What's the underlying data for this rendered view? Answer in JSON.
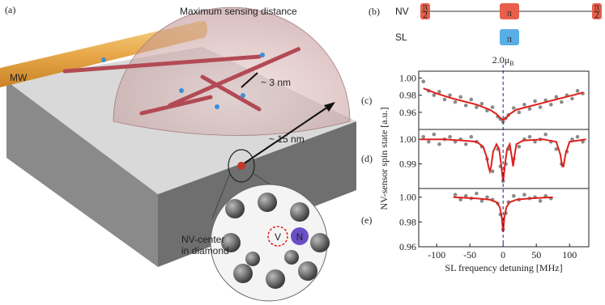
{
  "illustration": {
    "label": "(a)",
    "title": "Maximum sensing distance",
    "mw_label": "MW",
    "short_distance": "~ 3 nm",
    "long_distance": "~ 15 nm",
    "nv_caption": [
      "NV-center",
      "in diamond"
    ],
    "vacancy": "V",
    "nitrogen": "N"
  },
  "pulse_sequence": {
    "label": "(b)",
    "rows": [
      {
        "name": "NV",
        "pulses": [
          {
            "text": "π",
            "sub": "2"
          },
          {
            "text": "π"
          },
          {
            "text": "π",
            "sub": "2"
          }
        ]
      },
      {
        "name": "SL",
        "pulses": [
          {
            "text": "π"
          }
        ]
      }
    ]
  },
  "y_axis_label": "NV-sensor spin state [a.u.]",
  "detuning_marker": {
    "x": 0,
    "text": "2.0μ",
    "sub": "B"
  },
  "chart_data": [
    {
      "type": "scatter",
      "label": "(c)",
      "xlim": [
        -127,
        129
      ],
      "ylim": [
        0.94,
        1.008
      ],
      "yticks": [
        {
          "value": 0.96,
          "label": "0.96"
        },
        {
          "value": 0.98,
          "label": "0.98"
        },
        {
          "value": 1.0,
          "label": "1.00"
        }
      ],
      "points": {
        "color": "#8a8a8a",
        "x": [
          -120,
          -112,
          -104,
          -96,
          -88,
          -80,
          -72,
          -64,
          -56,
          -48,
          -40,
          -32,
          -24,
          -16,
          -8,
          -4,
          0,
          4,
          8,
          16,
          24,
          32,
          40,
          48,
          56,
          64,
          72,
          80,
          88,
          96,
          104,
          112,
          120
        ],
        "values": [
          0.996,
          0.985,
          0.98,
          0.984,
          0.975,
          0.98,
          0.972,
          0.978,
          0.968,
          0.975,
          0.966,
          0.97,
          0.962,
          0.966,
          0.955,
          0.952,
          0.949,
          0.953,
          0.957,
          0.965,
          0.96,
          0.969,
          0.964,
          0.973,
          0.966,
          0.974,
          0.969,
          0.978,
          0.972,
          0.98,
          0.976,
          0.985,
          0.982
        ]
      },
      "fit": {
        "color": "#e0201c",
        "x": [
          -120,
          -100,
          -80,
          -60,
          -40,
          -20,
          -10,
          -5,
          0,
          5,
          10,
          20,
          40,
          60,
          80,
          100,
          120
        ],
        "values": [
          0.988,
          0.982,
          0.977,
          0.973,
          0.969,
          0.963,
          0.958,
          0.954,
          0.951,
          0.954,
          0.958,
          0.963,
          0.967,
          0.971,
          0.975,
          0.979,
          0.983
        ]
      }
    },
    {
      "type": "scatter",
      "label": "(d)",
      "xlim": [
        -127,
        129
      ],
      "ylim": [
        0.98,
        1.004
      ],
      "yticks": [
        {
          "value": 0.99,
          "label": "0.99"
        },
        {
          "value": 1.0,
          "label": "1.00"
        }
      ],
      "points": {
        "color": "#8a8a8a",
        "x": [
          -120,
          -112,
          -104,
          -96,
          -88,
          -80,
          -72,
          -64,
          -56,
          -48,
          -40,
          -32,
          -24,
          -16,
          -8,
          -4,
          0,
          4,
          8,
          16,
          24,
          32,
          40,
          48,
          56,
          64,
          72,
          80,
          88,
          96,
          104,
          112,
          120
        ],
        "values": [
          1.001,
          0.999,
          1.002,
          0.998,
          1.0,
          1.001,
          0.999,
          1.0,
          0.998,
          1.001,
          0.999,
          0.997,
          0.992,
          0.987,
          0.996,
          0.989,
          0.983,
          0.99,
          0.996,
          0.992,
          0.997,
          1.0,
          1.001,
          0.999,
          1.0,
          1.002,
          0.999,
          0.996,
          0.99,
          0.995,
          1.0,
          1.001,
          0.999
        ]
      },
      "fit": {
        "color": "#e0201c",
        "x": [
          -125,
          -90,
          -60,
          -40,
          -30,
          -25,
          -22,
          -20,
          -18,
          -15,
          -10,
          -6,
          -3,
          -1,
          0,
          1,
          3,
          6,
          10,
          13,
          15,
          17,
          20,
          30,
          60,
          80,
          86,
          89,
          91,
          94,
          100,
          125
        ],
        "values": [
          1.0,
          1.0,
          0.9995,
          0.999,
          0.997,
          0.993,
          0.989,
          0.987,
          0.989,
          0.995,
          0.998,
          0.996,
          0.99,
          0.985,
          0.983,
          0.985,
          0.99,
          0.996,
          0.998,
          0.993,
          0.989,
          0.993,
          0.998,
          0.9995,
          1.0,
          0.999,
          0.994,
          0.989,
          0.989,
          0.994,
          0.999,
          1.0
        ]
      }
    },
    {
      "type": "scatter",
      "label": "(e)",
      "xlim": [
        -127,
        129
      ],
      "ylim": [
        0.96,
        1.007
      ],
      "yticks": [
        {
          "value": 0.96,
          "label": "0.96"
        },
        {
          "value": 0.98,
          "label": "0.98"
        },
        {
          "value": 1.0,
          "label": "1.00"
        }
      ],
      "xticks": [
        -100,
        -50,
        0,
        50,
        100
      ],
      "x_axis_label": "SL frequency detuning [MHz]",
      "points": {
        "color": "#8a8a8a",
        "x": [
          -72,
          -64,
          -56,
          -48,
          -40,
          -32,
          -24,
          -16,
          -8,
          -4,
          0,
          4,
          8,
          16,
          24,
          32,
          40,
          48,
          56,
          64,
          72
        ],
        "values": [
          1.002,
          0.998,
          1.001,
          0.999,
          1.003,
          0.997,
          1.0,
          0.998,
          0.995,
          0.986,
          0.974,
          0.987,
          0.996,
          1.001,
          0.998,
          1.002,
          0.999,
          1.0,
          0.997,
          1.001,
          0.999
        ]
      },
      "fit": {
        "color": "#e0201c",
        "x": [
          -75,
          -40,
          -20,
          -10,
          -5,
          -2,
          0,
          2,
          5,
          10,
          20,
          40,
          75
        ],
        "values": [
          1.0,
          0.999,
          0.998,
          0.996,
          0.992,
          0.984,
          0.972,
          0.984,
          0.992,
          0.996,
          0.998,
          0.999,
          1.0
        ]
      }
    }
  ]
}
